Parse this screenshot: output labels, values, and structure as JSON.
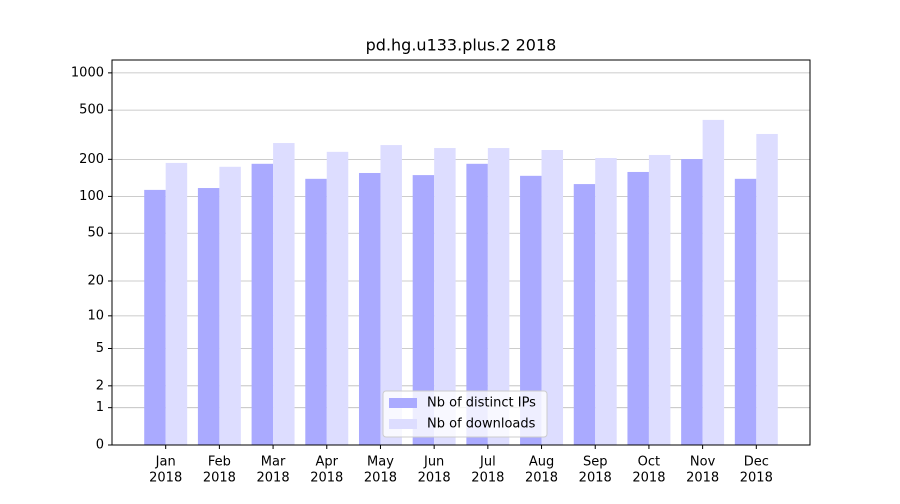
{
  "chart_data": {
    "type": "bar",
    "title": "pd.hg.u133.plus.2 2018",
    "categories": [
      [
        "Jan",
        "2018"
      ],
      [
        "Feb",
        "2018"
      ],
      [
        "Mar",
        "2018"
      ],
      [
        "Apr",
        "2018"
      ],
      [
        "May",
        "2018"
      ],
      [
        "Jun",
        "2018"
      ],
      [
        "Jul",
        "2018"
      ],
      [
        "Aug",
        "2018"
      ],
      [
        "Sep",
        "2018"
      ],
      [
        "Oct",
        "2018"
      ],
      [
        "Nov",
        "2018"
      ],
      [
        "Dec",
        "2018"
      ]
    ],
    "series": [
      {
        "name": "Nb of distinct IPs",
        "color": "#aaaaff",
        "values": [
          113,
          117,
          184,
          139,
          155,
          149,
          184,
          147,
          126,
          158,
          201,
          139
        ]
      },
      {
        "name": "Nb of downloads",
        "color": "#ddddff",
        "values": [
          187,
          174,
          271,
          230,
          261,
          247,
          247,
          238,
          205,
          217,
          417,
          321
        ]
      }
    ],
    "yscale": "log1p",
    "ylim": [
      0,
      1270
    ],
    "yticks": [
      0,
      1,
      2,
      5,
      10,
      20,
      50,
      100,
      200,
      500,
      1000
    ],
    "grid": true,
    "legend": "lower center"
  }
}
